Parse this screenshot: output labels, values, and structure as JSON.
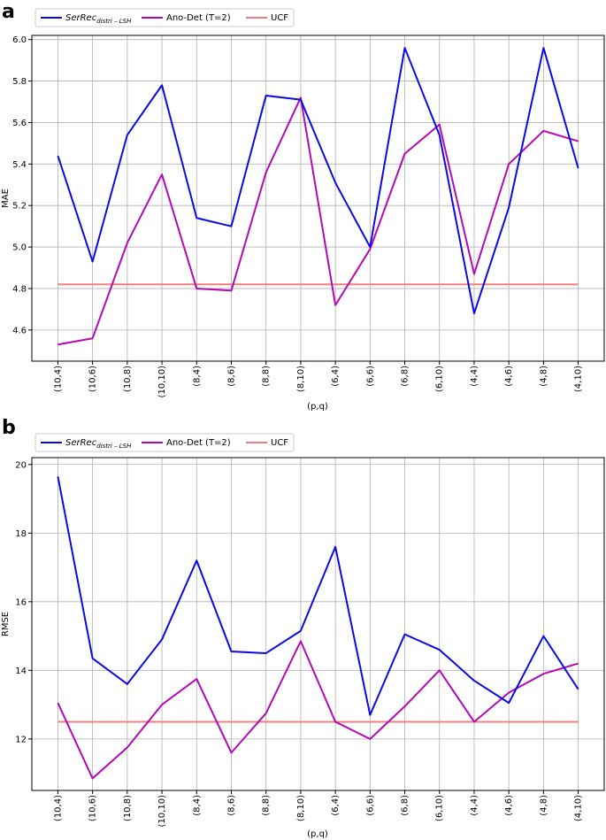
{
  "categories": [
    "(10,4)",
    "(10,6)",
    "(10,8)",
    "(10,10)",
    "(8,4)",
    "(8,6)",
    "(8,8)",
    "(8,10)",
    "(6,4)",
    "(6,6)",
    "(6,8)",
    "(6,10)",
    "(4,4)",
    "(4,6)",
    "(4,8)",
    "(4,10)"
  ],
  "legend": {
    "series1_main": "SerRec",
    "series1_sub": "distri – LSH",
    "series2": "Ano-Det (T=2)",
    "series3": "UCF"
  },
  "colors": {
    "serrec": "#0a0ae6",
    "anodet": "#b30ab3",
    "ucf": "#f08080"
  },
  "chart_data": [
    {
      "panel": "a",
      "type": "line",
      "xlabel": "(p,q)",
      "ylabel": "MAE",
      "ylim": [
        4.45,
        6.02
      ],
      "yticks": [
        4.6,
        4.8,
        5.0,
        5.2,
        5.4,
        5.6,
        5.8,
        6.0
      ],
      "ytick_labels": [
        "4.6",
        "4.8",
        "5.0",
        "5.2",
        "5.4",
        "5.6",
        "5.8",
        "6.0"
      ],
      "grid": true,
      "legend_position": "top",
      "series": [
        {
          "name": "SerRec distri–LSH",
          "color": "#0a0ae6",
          "values": [
            5.44,
            4.93,
            5.54,
            5.78,
            5.14,
            5.1,
            5.73,
            5.71,
            5.31,
            5.0,
            5.96,
            5.54,
            4.68,
            5.19,
            5.96,
            5.38
          ]
        },
        {
          "name": "Ano-Det (T=2)",
          "color": "#b30ab3",
          "values": [
            4.53,
            4.56,
            5.02,
            5.35,
            4.8,
            4.79,
            5.36,
            5.72,
            4.72,
            4.99,
            5.45,
            5.59,
            4.87,
            5.4,
            5.56,
            5.51
          ]
        },
        {
          "name": "UCF",
          "color": "#f08080",
          "values": [
            4.82,
            4.82,
            4.82,
            4.82,
            4.82,
            4.82,
            4.82,
            4.82,
            4.82,
            4.82,
            4.82,
            4.82,
            4.82,
            4.82,
            4.82,
            4.82
          ]
        }
      ]
    },
    {
      "panel": "b",
      "type": "line",
      "xlabel": "(p,q)",
      "ylabel": "RMSE",
      "ylim": [
        10.5,
        20.2
      ],
      "yticks": [
        12,
        14,
        16,
        18,
        20
      ],
      "ytick_labels": [
        "12",
        "14",
        "16",
        "18",
        "20"
      ],
      "grid": true,
      "legend_position": "top",
      "series": [
        {
          "name": "SerRec distri–LSH",
          "color": "#0a0ae6",
          "values": [
            19.65,
            14.35,
            13.6,
            14.9,
            17.2,
            14.55,
            14.5,
            15.15,
            17.6,
            12.7,
            15.05,
            14.6,
            13.7,
            13.05,
            15.0,
            13.45
          ]
        },
        {
          "name": "Ano-Det (T=2)",
          "color": "#b30ab3",
          "values": [
            13.05,
            10.85,
            11.75,
            13.0,
            13.75,
            11.6,
            12.75,
            14.85,
            12.5,
            12.0,
            12.95,
            14.0,
            12.5,
            13.35,
            13.9,
            14.2
          ]
        },
        {
          "name": "UCF",
          "color": "#f08080",
          "values": [
            12.5,
            12.5,
            12.5,
            12.5,
            12.5,
            12.5,
            12.5,
            12.5,
            12.5,
            12.5,
            12.5,
            12.5,
            12.5,
            12.5,
            12.5,
            12.5
          ]
        }
      ]
    }
  ]
}
